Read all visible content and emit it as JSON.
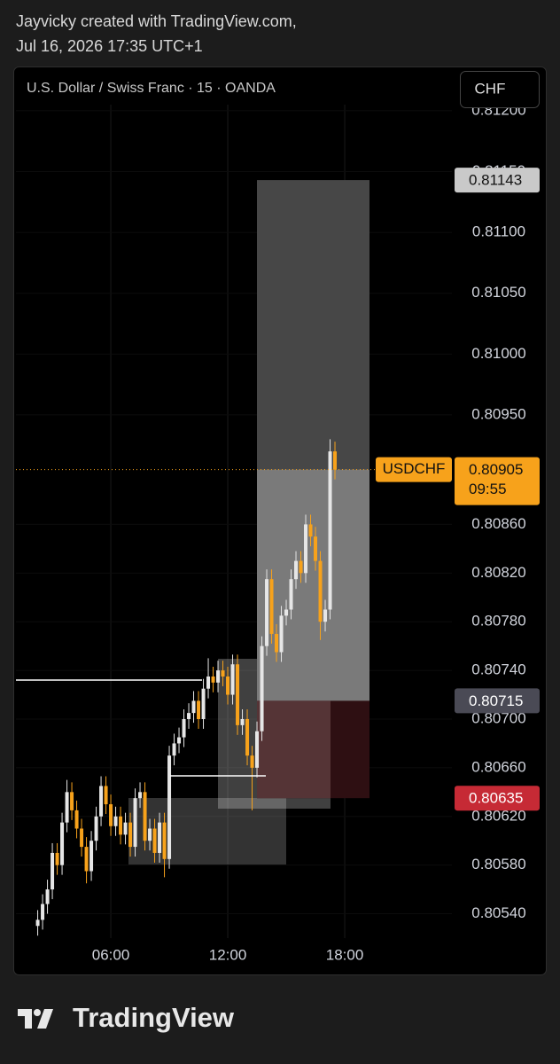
{
  "header": {
    "line1": "Jayvicky created with TradingView.com,",
    "line2": "Jul 16, 2026 17:35 UTC+1"
  },
  "footer": {
    "brand": "TradingView"
  },
  "chart_data": {
    "type": "candlestick",
    "title": "U.S. Dollar / Swiss Franc · 15 · OANDA",
    "currency": "CHF",
    "up_color": "#e6e6e6",
    "down_color": "#f7a21b",
    "grid": true,
    "xlim": [
      "01:08",
      "23:30"
    ],
    "xticks": [
      "06:00",
      "12:00",
      "18:00"
    ],
    "ylim": [
      0.8052,
      0.81205
    ],
    "yticks": [
      {
        "value": 0.8054,
        "label": "0.80540"
      },
      {
        "value": 0.8058,
        "label": "0.80580"
      },
      {
        "value": 0.8062,
        "label": "0.80620"
      },
      {
        "value": 0.8066,
        "label": "0.80660"
      },
      {
        "value": 0.807,
        "label": "0.80700"
      },
      {
        "value": 0.8074,
        "label": "0.80740"
      },
      {
        "value": 0.8078,
        "label": "0.80780"
      },
      {
        "value": 0.8082,
        "label": "0.80820"
      },
      {
        "value": 0.8086,
        "label": "0.80860"
      },
      {
        "value": 0.8095,
        "label": "0.80950"
      },
      {
        "value": 0.81,
        "label": "0.81000"
      },
      {
        "value": 0.8105,
        "label": "0.81050"
      },
      {
        "value": 0.811,
        "label": "0.81100"
      },
      {
        "value": 0.8115,
        "label": "0.81150"
      },
      {
        "value": 0.812,
        "label": "0.81200"
      }
    ],
    "x": [
      "02:15",
      "02:30",
      "02:45",
      "03:00",
      "03:15",
      "03:30",
      "03:45",
      "04:00",
      "04:15",
      "04:30",
      "04:45",
      "05:00",
      "05:15",
      "05:30",
      "05:45",
      "06:00",
      "06:15",
      "06:30",
      "06:45",
      "07:00",
      "07:15",
      "07:30",
      "07:45",
      "08:00",
      "08:15",
      "08:30",
      "08:45",
      "09:00",
      "09:15",
      "09:30",
      "09:45",
      "10:00",
      "10:15",
      "10:30",
      "10:45",
      "11:00",
      "11:15",
      "11:30",
      "11:45",
      "12:00",
      "12:15",
      "12:30",
      "12:45",
      "13:00",
      "13:15",
      "13:30",
      "13:45",
      "14:00",
      "14:15",
      "14:30",
      "14:45",
      "15:00",
      "15:15",
      "15:30",
      "15:45",
      "16:00",
      "16:15",
      "16:30",
      "16:45",
      "17:00",
      "17:15",
      "17:30"
    ],
    "open": [
      0.8053,
      0.80535,
      0.80548,
      0.8056,
      0.8059,
      0.8058,
      0.80615,
      0.8064,
      0.80625,
      0.8061,
      0.80595,
      0.80575,
      0.806,
      0.8062,
      0.80645,
      0.8063,
      0.80612,
      0.8062,
      0.80605,
      0.80615,
      0.80595,
      0.80635,
      0.8064,
      0.806,
      0.8061,
      0.8059,
      0.80615,
      0.80585,
      0.8067,
      0.8068,
      0.80685,
      0.807,
      0.80705,
      0.80715,
      0.807,
      0.80725,
      0.80735,
      0.8073,
      0.8074,
      0.80735,
      0.8072,
      0.80745,
      0.80695,
      0.807,
      0.8067,
      0.8066,
      0.8069,
      0.8076,
      0.80815,
      0.8077,
      0.80755,
      0.80785,
      0.8079,
      0.80815,
      0.8083,
      0.8082,
      0.8086,
      0.8085,
      0.8083,
      0.8078,
      0.8079,
      0.8092
    ],
    "high": [
      0.80543,
      0.80556,
      0.80568,
      0.80598,
      0.80598,
      0.80623,
      0.8065,
      0.80648,
      0.80633,
      0.80618,
      0.80603,
      0.80608,
      0.80628,
      0.80653,
      0.80653,
      0.80638,
      0.80628,
      0.80628,
      0.80623,
      0.80623,
      0.80643,
      0.80648,
      0.80648,
      0.80618,
      0.80618,
      0.80623,
      0.80623,
      0.80678,
      0.80688,
      0.80693,
      0.80708,
      0.80713,
      0.80723,
      0.80723,
      0.80733,
      0.8075,
      0.80743,
      0.80748,
      0.80748,
      0.80743,
      0.80753,
      0.80753,
      0.80708,
      0.80708,
      0.80678,
      0.80698,
      0.80768,
      0.80823,
      0.80823,
      0.80778,
      0.80793,
      0.80798,
      0.80823,
      0.80838,
      0.80838,
      0.80868,
      0.80868,
      0.80858,
      0.80838,
      0.80798,
      0.8093,
      0.80928
    ],
    "low": [
      0.80522,
      0.80527,
      0.8054,
      0.80552,
      0.80572,
      0.80572,
      0.80607,
      0.80617,
      0.80602,
      0.80587,
      0.80565,
      0.80567,
      0.80592,
      0.80612,
      0.80622,
      0.80604,
      0.80604,
      0.80597,
      0.80597,
      0.80587,
      0.80587,
      0.80627,
      0.80592,
      0.80592,
      0.80582,
      0.80582,
      0.8057,
      0.80577,
      0.80662,
      0.80672,
      0.80677,
      0.80692,
      0.80697,
      0.80692,
      0.80692,
      0.80717,
      0.80722,
      0.80722,
      0.80727,
      0.80712,
      0.80712,
      0.80687,
      0.80687,
      0.80662,
      0.80625,
      0.80652,
      0.80682,
      0.80752,
      0.80762,
      0.80747,
      0.80747,
      0.80777,
      0.80782,
      0.80807,
      0.80812,
      0.80812,
      0.80842,
      0.80822,
      0.80765,
      0.80772,
      0.80782,
      0.80897
    ],
    "close": [
      0.80535,
      0.80548,
      0.8056,
      0.8059,
      0.8058,
      0.80615,
      0.8064,
      0.80625,
      0.8061,
      0.80595,
      0.80575,
      0.806,
      0.8062,
      0.80645,
      0.8063,
      0.80612,
      0.8062,
      0.80605,
      0.80615,
      0.80595,
      0.80635,
      0.8064,
      0.806,
      0.8061,
      0.8059,
      0.80615,
      0.80585,
      0.8067,
      0.8068,
      0.80685,
      0.807,
      0.80705,
      0.80715,
      0.807,
      0.80725,
      0.80735,
      0.8073,
      0.8074,
      0.80735,
      0.8072,
      0.80745,
      0.80695,
      0.807,
      0.8067,
      0.8066,
      0.8069,
      0.8076,
      0.80815,
      0.8077,
      0.80755,
      0.80785,
      0.8079,
      0.80815,
      0.8083,
      0.8082,
      0.8086,
      0.8085,
      0.8083,
      0.8078,
      0.8079,
      0.8092,
      0.80905
    ],
    "last_price": {
      "symbol": "USDCHF",
      "value": 0.80905,
      "countdown": "09:55"
    },
    "position": {
      "target": 0.81143,
      "entry": 0.80715,
      "stop": 0.80635
    }
  }
}
